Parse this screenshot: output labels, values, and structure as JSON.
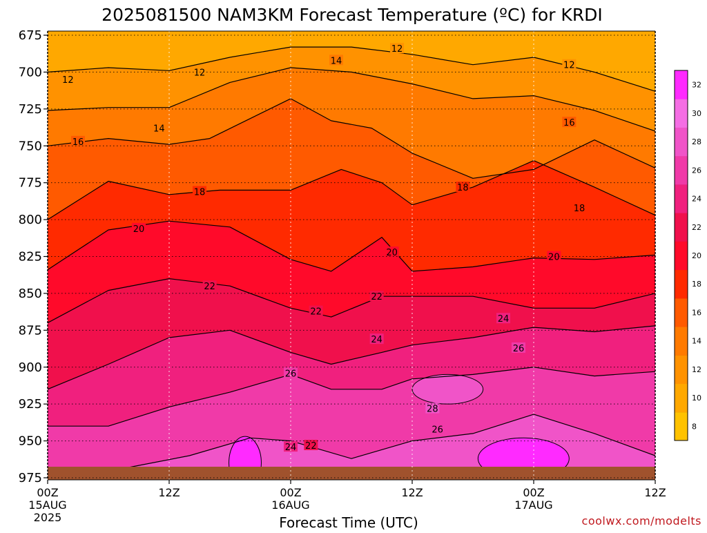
{
  "chart_data": {
    "type": "heatmap",
    "title": "2025081500 NAM3KM Forecast Temperature (ºC) for KRDI",
    "xlabel": "Forecast Time (UTC)",
    "ylabel": "",
    "credit": "coolwx.com/modelts",
    "y_axis": {
      "ticks": [
        675,
        700,
        725,
        750,
        775,
        800,
        825,
        850,
        875,
        900,
        925,
        950,
        975
      ],
      "range": [
        675,
        978
      ],
      "reversed": true
    },
    "x_axis": {
      "range_hours": [
        0,
        60
      ],
      "ticks": [
        {
          "hour": 0,
          "label": "00Z",
          "date": "15AUG",
          "year": "2025"
        },
        {
          "hour": 12,
          "label": "12Z"
        },
        {
          "hour": 24,
          "label": "00Z",
          "date": "16AUG"
        },
        {
          "hour": 36,
          "label": "12Z"
        },
        {
          "hour": 48,
          "label": "00Z",
          "date": "17AUG"
        },
        {
          "hour": 60,
          "label": "12Z"
        }
      ]
    },
    "grid": true,
    "colorbar": {
      "placement": "right",
      "levels": [
        8,
        10,
        12,
        14,
        16,
        18,
        20,
        22,
        24,
        26,
        28,
        30,
        32
      ],
      "colors": [
        "#ffc200",
        "#ffa800",
        "#ff9200",
        "#ff7a00",
        "#ff5a00",
        "#ff2a00",
        "#ff0a2a",
        "#f0104c",
        "#f0207e",
        "#f03aa8",
        "#f054c8",
        "#f56ee4",
        "#ff2aff"
      ]
    },
    "isotherms": [
      {
        "level": 12,
        "p": [
          [
            0,
            700
          ],
          [
            6,
            697
          ],
          [
            12,
            699
          ],
          [
            18,
            690
          ],
          [
            24,
            683
          ],
          [
            30,
            683
          ],
          [
            36,
            688
          ],
          [
            42,
            695
          ],
          [
            48,
            690
          ],
          [
            54,
            700
          ],
          [
            60,
            713
          ]
        ]
      },
      {
        "level": 14,
        "p": [
          [
            0,
            726
          ],
          [
            6,
            724
          ],
          [
            12,
            724
          ],
          [
            18,
            707
          ],
          [
            24,
            697
          ],
          [
            30,
            700
          ],
          [
            36,
            708
          ],
          [
            42,
            718
          ],
          [
            48,
            716
          ],
          [
            54,
            726
          ],
          [
            60,
            740
          ]
        ]
      },
      {
        "level": 16,
        "p": [
          [
            0,
            750
          ],
          [
            6,
            745
          ],
          [
            12,
            749
          ],
          [
            16,
            745
          ],
          [
            24,
            718
          ],
          [
            28,
            733
          ],
          [
            32,
            738
          ],
          [
            36,
            755
          ],
          [
            42,
            772
          ],
          [
            48,
            766
          ],
          [
            54,
            746
          ],
          [
            60,
            765
          ]
        ]
      },
      {
        "level": 18,
        "p": [
          [
            0,
            800
          ],
          [
            6,
            774
          ],
          [
            12,
            783
          ],
          [
            17,
            780
          ],
          [
            24,
            780
          ],
          [
            29,
            766
          ],
          [
            33,
            775
          ],
          [
            36,
            790
          ],
          [
            42,
            778
          ],
          [
            48,
            760
          ],
          [
            54,
            778
          ],
          [
            60,
            797
          ]
        ]
      },
      {
        "level": 20,
        "p": [
          [
            0,
            834
          ],
          [
            6,
            807
          ],
          [
            12,
            801
          ],
          [
            18,
            805
          ],
          [
            24,
            827
          ],
          [
            28,
            835
          ],
          [
            33,
            812
          ],
          [
            36,
            835
          ],
          [
            42,
            832
          ],
          [
            48,
            826
          ],
          [
            54,
            827
          ],
          [
            60,
            824
          ]
        ]
      },
      {
        "level": 22,
        "p": [
          [
            0,
            870
          ],
          [
            6,
            848
          ],
          [
            12,
            840
          ],
          [
            18,
            845
          ],
          [
            24,
            860
          ],
          [
            28,
            866
          ],
          [
            33,
            852
          ],
          [
            36,
            852
          ],
          [
            42,
            852
          ],
          [
            48,
            860
          ],
          [
            54,
            860
          ],
          [
            60,
            850
          ]
        ]
      },
      {
        "level": 24,
        "p": [
          [
            0,
            915
          ],
          [
            6,
            898
          ],
          [
            12,
            880
          ],
          [
            18,
            875
          ],
          [
            24,
            890
          ],
          [
            28,
            898
          ],
          [
            33,
            890
          ],
          [
            36,
            885
          ],
          [
            42,
            880
          ],
          [
            48,
            873
          ],
          [
            54,
            876
          ],
          [
            60,
            872
          ]
        ]
      },
      {
        "level": 26,
        "p": [
          [
            0,
            940
          ],
          [
            6,
            940
          ],
          [
            12,
            927
          ],
          [
            18,
            917
          ],
          [
            24,
            905
          ],
          [
            28,
            915
          ],
          [
            33,
            915
          ],
          [
            36,
            908
          ],
          [
            42,
            905
          ],
          [
            48,
            900
          ],
          [
            54,
            906
          ],
          [
            60,
            903
          ]
        ]
      },
      {
        "level": 28,
        "p": [
          [
            0,
            970
          ],
          [
            8,
            968
          ],
          [
            14,
            960
          ],
          [
            20,
            948
          ],
          [
            24,
            950
          ],
          [
            30,
            962
          ],
          [
            36,
            950
          ],
          [
            42,
            945
          ],
          [
            48,
            932
          ],
          [
            54,
            945
          ],
          [
            60,
            960
          ]
        ]
      }
    ],
    "contour_labels": [
      {
        "text": "12",
        "h": 2,
        "p": 705
      },
      {
        "text": "12",
        "h": 15,
        "p": 700
      },
      {
        "text": "12",
        "h": 34.5,
        "p": 684
      },
      {
        "text": "12",
        "h": 51.5,
        "p": 695
      },
      {
        "text": "14",
        "h": 28.5,
        "p": 692
      },
      {
        "text": "14",
        "h": 11,
        "p": 738
      },
      {
        "text": "16",
        "h": 3,
        "p": 747
      },
      {
        "text": "16",
        "h": 51.5,
        "p": 734
      },
      {
        "text": "18",
        "h": 15,
        "p": 781
      },
      {
        "text": "18",
        "h": 41,
        "p": 778
      },
      {
        "text": "18",
        "h": 52.5,
        "p": 792
      },
      {
        "text": "20",
        "h": 9,
        "p": 806
      },
      {
        "text": "20",
        "h": 34,
        "p": 822
      },
      {
        "text": "20",
        "h": 50,
        "p": 825
      },
      {
        "text": "22",
        "h": 16,
        "p": 845
      },
      {
        "text": "22",
        "h": 26.5,
        "p": 862
      },
      {
        "text": "22",
        "h": 32.5,
        "p": 852
      },
      {
        "text": "22",
        "h": 26,
        "p": 953
      },
      {
        "text": "24",
        "h": 32.5,
        "p": 881
      },
      {
        "text": "24",
        "h": 45,
        "p": 867
      },
      {
        "text": "24",
        "h": 24,
        "p": 954
      },
      {
        "text": "26",
        "h": 24,
        "p": 904
      },
      {
        "text": "26",
        "h": 46.5,
        "p": 887
      },
      {
        "text": "26",
        "h": 38.5,
        "p": 942
      },
      {
        "text": "28",
        "h": 38,
        "p": 928
      }
    ],
    "warm_pockets": [
      {
        "h": 19.5,
        "p": 965,
        "rh": 1.6,
        "rp": 18,
        "value": 32
      },
      {
        "h": 47,
        "p": 962,
        "rh": 4.5,
        "rp": 14,
        "value": 32
      },
      {
        "h": 39.5,
        "p": 915,
        "rh": 3.5,
        "rp": 10,
        "value": 28
      }
    ]
  }
}
